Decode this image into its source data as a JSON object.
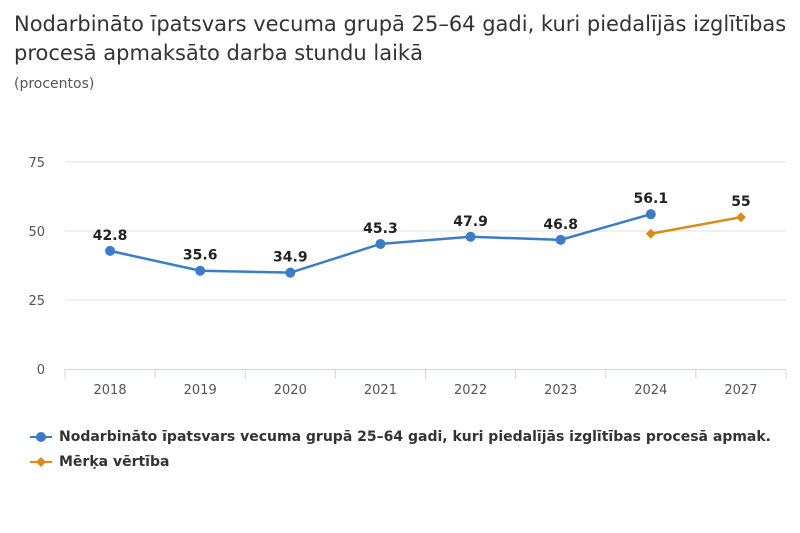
{
  "chart_data": {
    "type": "line",
    "title": "Nodarbināto īpatsvars vecuma grupā 25–64 gadi, kuri piedalījās izglītības procesā apmaksāto darba stundu laikā",
    "subtitle": "(procentos)",
    "categories": [
      "2018",
      "2019",
      "2020",
      "2021",
      "2022",
      "2023",
      "2024",
      "2027"
    ],
    "ylim": [
      0,
      75
    ],
    "yticks": [
      "0",
      "25",
      "50",
      "75"
    ],
    "grid": true,
    "legend_placement": "bottom-left",
    "series": [
      {
        "name": "Nodarbināto īpatsvars vecuma grupā 25–64 gadi, kuri piedalījās izglītības procesā apmak.",
        "color": "#3a7cc8",
        "marker": "circle",
        "values": [
          42.8,
          35.6,
          34.9,
          45.3,
          47.9,
          46.8,
          56.1,
          null
        ],
        "labels": [
          "42.8",
          "35.6",
          "34.9",
          "45.3",
          "47.9",
          "46.8",
          "56.1",
          null
        ]
      },
      {
        "name": "Mērķa vērtība",
        "color": "#d98c1a",
        "marker": "diamond",
        "values": [
          null,
          null,
          null,
          null,
          null,
          null,
          49,
          55
        ],
        "labels": [
          null,
          null,
          null,
          null,
          null,
          null,
          null,
          "55"
        ]
      }
    ]
  }
}
